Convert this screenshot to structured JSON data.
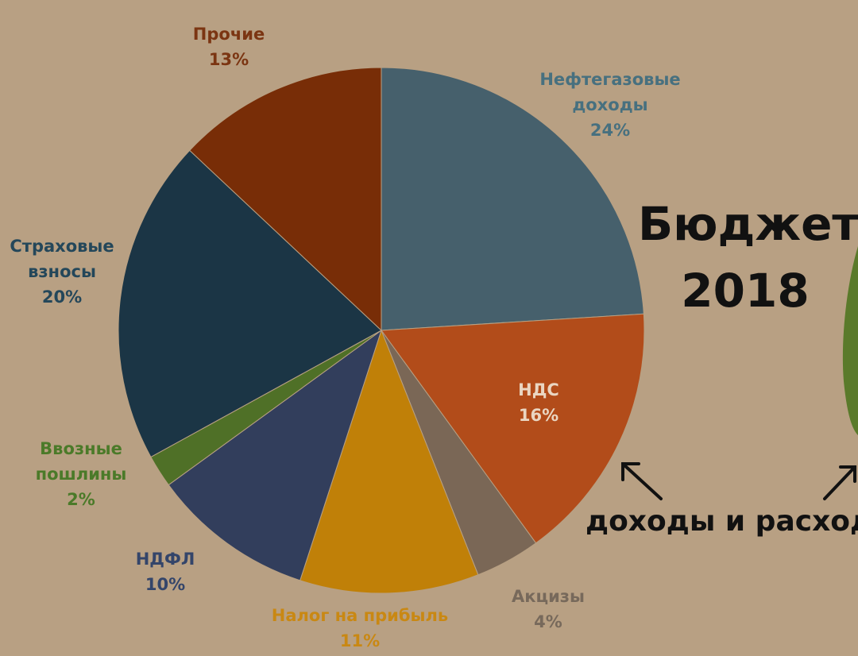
{
  "chart_data": {
    "type": "pie",
    "title_lines": [
      "Бюджет",
      "2018"
    ],
    "slices": [
      {
        "label": [
          "Нефтегазовые",
          "доходы"
        ],
        "value_label": "24%",
        "value": 24,
        "color": "#46606c",
        "label_color": "#47707f"
      },
      {
        "label": [
          "НДС"
        ],
        "value_label": "16%",
        "value": 16,
        "color": "#b24c1a",
        "label_color": "#ead6c2"
      },
      {
        "label": [
          "Акцизы"
        ],
        "value_label": "4%",
        "value": 4,
        "color": "#7a6756",
        "label_color": "#77695b"
      },
      {
        "label": [
          "Налог на прибыль"
        ],
        "value_label": "11%",
        "value": 11,
        "color": "#c08008",
        "label_color": "#c98813"
      },
      {
        "label": [
          "НДФЛ"
        ],
        "value_label": "10%",
        "value": 10,
        "color": "#323e5c",
        "label_color": "#34456a"
      },
      {
        "label": [
          "Ввозные",
          "пошлины"
        ],
        "value_label": "2%",
        "value": 2,
        "color": "#4f7027",
        "label_color": "#4b7a29"
      },
      {
        "label": [
          "Страховые",
          "взносы"
        ],
        "value_label": "20%",
        "value": 20,
        "color": "#1b3545",
        "label_color": "#24475a"
      },
      {
        "label": [
          "Прочие"
        ],
        "value_label": "13%",
        "value": 13,
        "color": "#782d07",
        "label_color": "#7b3512"
      }
    ]
  },
  "annotation": {
    "text": "доходы и расход",
    "arrow_color": "#111111",
    "side_shape_color": "#5a7a2a"
  }
}
